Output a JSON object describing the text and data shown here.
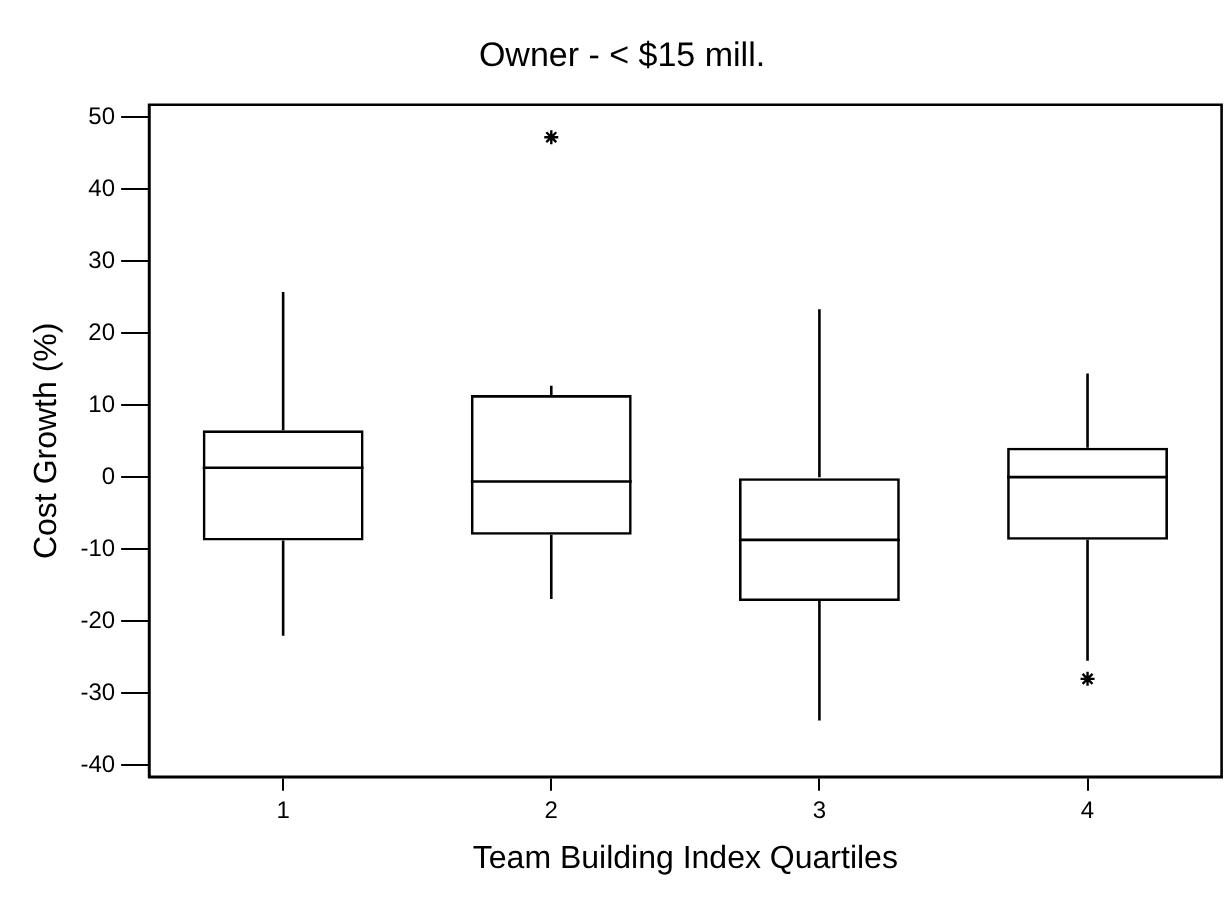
{
  "chart_data": {
    "type": "box",
    "title": "Owner - < $15 mill.",
    "xlabel": "Team Building Index Quartiles",
    "ylabel": "Cost Growth (%)",
    "categories": [
      "1",
      "2",
      "3",
      "4"
    ],
    "boxes": [
      {
        "low": -22,
        "q1": -8.8,
        "median": 1.3,
        "q3": 6.5,
        "high": 25.7
      },
      {
        "low": -16.9,
        "q1": -8,
        "median": -0.6,
        "q3": 11.4,
        "high": 12.7,
        "outliers": [
          47.2
        ]
      },
      {
        "low": -33.8,
        "q1": -17.2,
        "median": -8.7,
        "q3": 0,
        "high": 23.3
      },
      {
        "low": -25.5,
        "q1": -8.7,
        "median": 0,
        "q3": 4.1,
        "high": 14.4,
        "outliers": [
          -28
        ]
      }
    ],
    "ylim": [
      -41.6,
      51.7
    ],
    "yticks": [
      -40,
      -30,
      -20,
      -10,
      0,
      10,
      20,
      30,
      40,
      50
    ],
    "grid": false
  }
}
